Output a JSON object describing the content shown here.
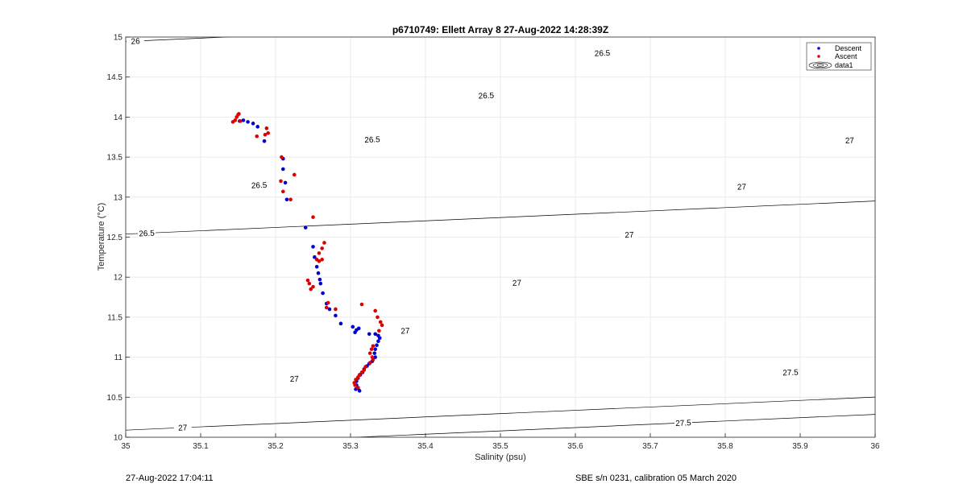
{
  "chart_data": {
    "type": "scatter",
    "title": "p6710749: Ellett Array 8 27-Aug-2022 14:28:39Z",
    "xlabel": "Salinity (psu)",
    "ylabel": "Temperature (°C)",
    "xlim": [
      35,
      36
    ],
    "ylim": [
      10,
      15
    ],
    "x_ticks": [
      "35",
      "35.1",
      "35.2",
      "35.3",
      "35.4",
      "35.5",
      "35.6",
      "35.7",
      "35.8",
      "35.9",
      "36"
    ],
    "y_ticks": [
      "10",
      "10.5",
      "11",
      "11.5",
      "12",
      "12.5",
      "13",
      "13.5",
      "14",
      "14.5",
      "15"
    ],
    "grid": true,
    "legend_position": "top-right",
    "legend": [
      "Descent",
      "Ascent",
      "data1"
    ],
    "colors": {
      "descent": "#0000cc",
      "ascent": "#dd0000",
      "contour": "#000000",
      "grid": "#e6e6e6"
    },
    "series": [
      {
        "name": "Descent",
        "points": [
          [
            35.152,
            13.95
          ],
          [
            35.157,
            13.96
          ],
          [
            35.163,
            13.94
          ],
          [
            35.17,
            13.92
          ],
          [
            35.176,
            13.88
          ],
          [
            35.185,
            13.7
          ],
          [
            35.21,
            13.48
          ],
          [
            35.21,
            13.35
          ],
          [
            35.213,
            13.18
          ],
          [
            35.215,
            12.97
          ],
          [
            35.24,
            12.62
          ],
          [
            35.25,
            12.38
          ],
          [
            35.252,
            12.25
          ],
          [
            35.255,
            12.13
          ],
          [
            35.257,
            12.05
          ],
          [
            35.259,
            11.97
          ],
          [
            35.26,
            11.92
          ],
          [
            35.263,
            11.8
          ],
          [
            35.268,
            11.67
          ],
          [
            35.272,
            11.6
          ],
          [
            35.28,
            11.52
          ],
          [
            35.287,
            11.42
          ],
          [
            35.303,
            11.38
          ],
          [
            35.306,
            11.31
          ],
          [
            35.308,
            11.34
          ],
          [
            35.311,
            11.36
          ],
          [
            35.325,
            11.29
          ],
          [
            35.333,
            11.29
          ],
          [
            35.337,
            11.27
          ],
          [
            35.339,
            11.24
          ],
          [
            35.337,
            11.2
          ],
          [
            35.335,
            11.15
          ],
          [
            35.333,
            11.1
          ],
          [
            35.332,
            11.05
          ],
          [
            35.333,
            11.0
          ],
          [
            35.329,
            10.95
          ],
          [
            35.325,
            10.92
          ],
          [
            35.322,
            10.89
          ],
          [
            35.318,
            10.85
          ],
          [
            35.316,
            10.81
          ],
          [
            35.313,
            10.78
          ],
          [
            35.31,
            10.74
          ],
          [
            35.308,
            10.7
          ],
          [
            35.308,
            10.65
          ],
          [
            35.31,
            10.61
          ],
          [
            35.312,
            10.58
          ],
          [
            35.307,
            10.6
          ]
        ]
      },
      {
        "name": "Ascent",
        "points": [
          [
            35.143,
            13.94
          ],
          [
            35.146,
            13.96
          ],
          [
            35.148,
            14.0
          ],
          [
            35.15,
            14.03
          ],
          [
            35.151,
            14.04
          ],
          [
            35.153,
            13.95
          ],
          [
            35.188,
            13.86
          ],
          [
            35.19,
            13.8
          ],
          [
            35.186,
            13.78
          ],
          [
            35.175,
            13.76
          ],
          [
            35.208,
            13.5
          ],
          [
            35.225,
            13.28
          ],
          [
            35.207,
            13.2
          ],
          [
            35.21,
            13.07
          ],
          [
            35.22,
            12.97
          ],
          [
            35.25,
            12.75
          ],
          [
            35.265,
            12.43
          ],
          [
            35.262,
            12.36
          ],
          [
            35.258,
            12.3
          ],
          [
            35.255,
            12.22
          ],
          [
            35.258,
            12.2
          ],
          [
            35.262,
            12.22
          ],
          [
            35.243,
            11.96
          ],
          [
            35.245,
            11.92
          ],
          [
            35.25,
            11.88
          ],
          [
            35.247,
            11.85
          ],
          [
            35.27,
            11.68
          ],
          [
            35.268,
            11.62
          ],
          [
            35.28,
            11.6
          ],
          [
            35.315,
            11.66
          ],
          [
            35.333,
            11.58
          ],
          [
            35.336,
            11.5
          ],
          [
            35.34,
            11.44
          ],
          [
            35.342,
            11.4
          ],
          [
            35.338,
            11.33
          ],
          [
            35.33,
            11.14
          ],
          [
            35.328,
            11.1
          ],
          [
            35.326,
            11.05
          ],
          [
            35.329,
            11.0
          ],
          [
            35.33,
            10.97
          ],
          [
            35.326,
            10.93
          ],
          [
            35.32,
            10.88
          ],
          [
            35.318,
            10.84
          ],
          [
            35.315,
            10.81
          ],
          [
            35.312,
            10.78
          ],
          [
            35.31,
            10.75
          ],
          [
            35.307,
            10.72
          ],
          [
            35.305,
            10.68
          ],
          [
            35.306,
            10.65
          ],
          [
            35.31,
            10.62
          ]
        ]
      }
    ],
    "contours": [
      {
        "level": "26",
        "labels": [
          {
            "s": 35.013,
            "t": 14.95
          }
        ]
      },
      {
        "level": "26.5",
        "labels": [
          {
            "s": 35.028,
            "t": 12.55
          },
          {
            "s": 35.178,
            "t": 13.15
          },
          {
            "s": 35.329,
            "t": 13.72
          },
          {
            "s": 35.481,
            "t": 14.27
          },
          {
            "s": 35.636,
            "t": 14.8
          }
        ]
      },
      {
        "level": "27",
        "labels": [
          {
            "s": 35.076,
            "t": 10.12
          },
          {
            "s": 35.225,
            "t": 10.73
          },
          {
            "s": 35.373,
            "t": 11.33
          },
          {
            "s": 35.522,
            "t": 11.93
          },
          {
            "s": 35.672,
            "t": 12.53
          },
          {
            "s": 35.822,
            "t": 13.13
          },
          {
            "s": 35.966,
            "t": 13.71
          }
        ]
      },
      {
        "level": "27.5",
        "labels": [
          {
            "s": 35.744,
            "t": 10.18
          },
          {
            "s": 35.887,
            "t": 10.81
          }
        ]
      }
    ]
  },
  "footer": {
    "left": "27-Aug-2022 17:04:11",
    "right": "SBE s/n 0231, calibration 05 March 2020"
  }
}
